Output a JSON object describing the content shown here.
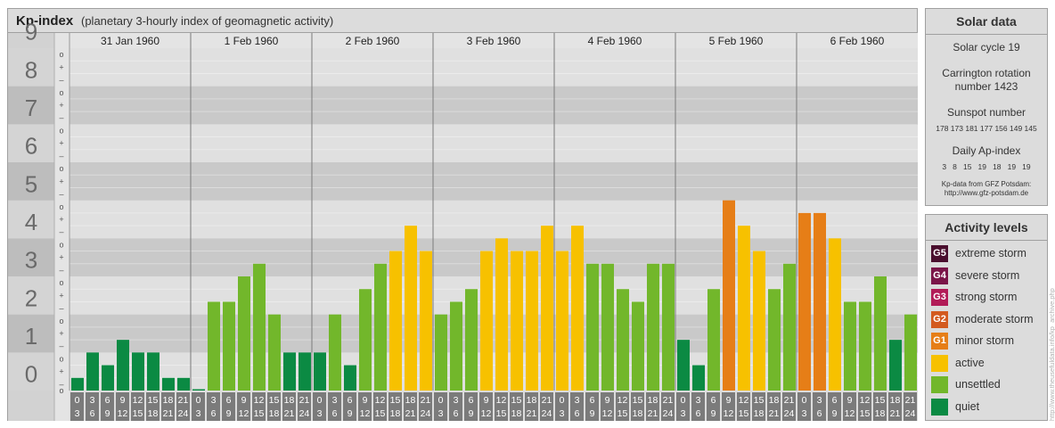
{
  "header": {
    "title": "Kp-index",
    "subtitle": "(planetary 3-hourly index of geomagnetic activity)"
  },
  "chart_data": {
    "type": "bar",
    "title": "Kp-index",
    "ylim": [
      0,
      9
    ],
    "y_ticks": [
      "0",
      "1",
      "2",
      "3",
      "4",
      "5",
      "6",
      "7",
      "8",
      "9"
    ],
    "thirds_labels": [
      "o",
      "+",
      "–"
    ],
    "days": [
      "31 Jan 1960",
      "1 Feb 1960",
      "2 Feb 1960",
      "3 Feb 1960",
      "4 Feb 1960",
      "5 Feb 1960",
      "6 Feb 1960"
    ],
    "interval_start": [
      "0",
      "3",
      "6",
      "9",
      "12",
      "15",
      "18",
      "21"
    ],
    "interval_end": [
      "3",
      "6",
      "9",
      "12",
      "15",
      "18",
      "21",
      "24"
    ],
    "kp_values": [
      [
        0.333,
        1.0,
        0.667,
        1.333,
        1.0,
        1.0,
        0.333,
        0.333
      ],
      [
        0.0,
        2.333,
        2.333,
        3.0,
        3.333,
        2.0,
        1.0,
        1.0
      ],
      [
        1.0,
        2.0,
        0.667,
        2.667,
        3.333,
        3.667,
        4.333,
        3.667
      ],
      [
        2.0,
        2.333,
        2.667,
        3.667,
        4.0,
        3.667,
        3.667,
        4.333
      ],
      [
        3.667,
        4.333,
        3.333,
        3.333,
        2.667,
        2.333,
        3.333,
        3.333
      ],
      [
        1.333,
        0.667,
        2.667,
        5.0,
        4.333,
        3.667,
        2.667,
        3.333
      ],
      [
        4.667,
        4.667,
        4.0,
        2.333,
        2.333,
        3.0,
        1.333,
        2.0
      ]
    ],
    "thresholds": {
      "quiet_below": 2,
      "unsettled_below": 3.667,
      "active_below": 4.667,
      "minor_below": 5.667
    },
    "colors": {
      "quiet": "#0b8a43",
      "unsettled": "#72b72b",
      "active": "#f7c100",
      "minor_storm": "#e67e17",
      "moderate_storm": "#d35a1f",
      "strong_storm": "#b21b57",
      "severe_storm": "#7a1548",
      "extreme_storm": "#4a0f2e"
    }
  },
  "solar_data": {
    "title": "Solar data",
    "solar_cycle": "Solar cycle 19",
    "carrington_line1": "Carrington rotation",
    "carrington_line2": "number 1423",
    "sunspot_label": "Sunspot number",
    "sunspot_values": "178 173 181 177 156 149 145",
    "ap_label": "Daily Ap-index",
    "ap_values": "3   8   15   19   18   19   19",
    "source_line1": "Kp-data from GFZ Potsdam:",
    "source_line2": "http://www.gfz-potsdam.de"
  },
  "activity_levels": {
    "title": "Activity levels",
    "items": [
      {
        "code": "G5",
        "label": "extreme storm",
        "color": "#4a0f2e"
      },
      {
        "code": "G4",
        "label": "severe storm",
        "color": "#7a1548"
      },
      {
        "code": "G3",
        "label": "strong storm",
        "color": "#b21b57"
      },
      {
        "code": "G2",
        "label": "moderate storm",
        "color": "#d35a1f"
      },
      {
        "code": "G1",
        "label": "minor storm",
        "color": "#e67e17"
      },
      {
        "code": "",
        "label": "active",
        "color": "#f7c100"
      },
      {
        "code": "",
        "label": "unsettled",
        "color": "#72b72b"
      },
      {
        "code": "",
        "label": "quiet",
        "color": "#0b8a43"
      }
    ]
  },
  "watermark": "http://www.theusefuldata.info/kp_archive.php"
}
